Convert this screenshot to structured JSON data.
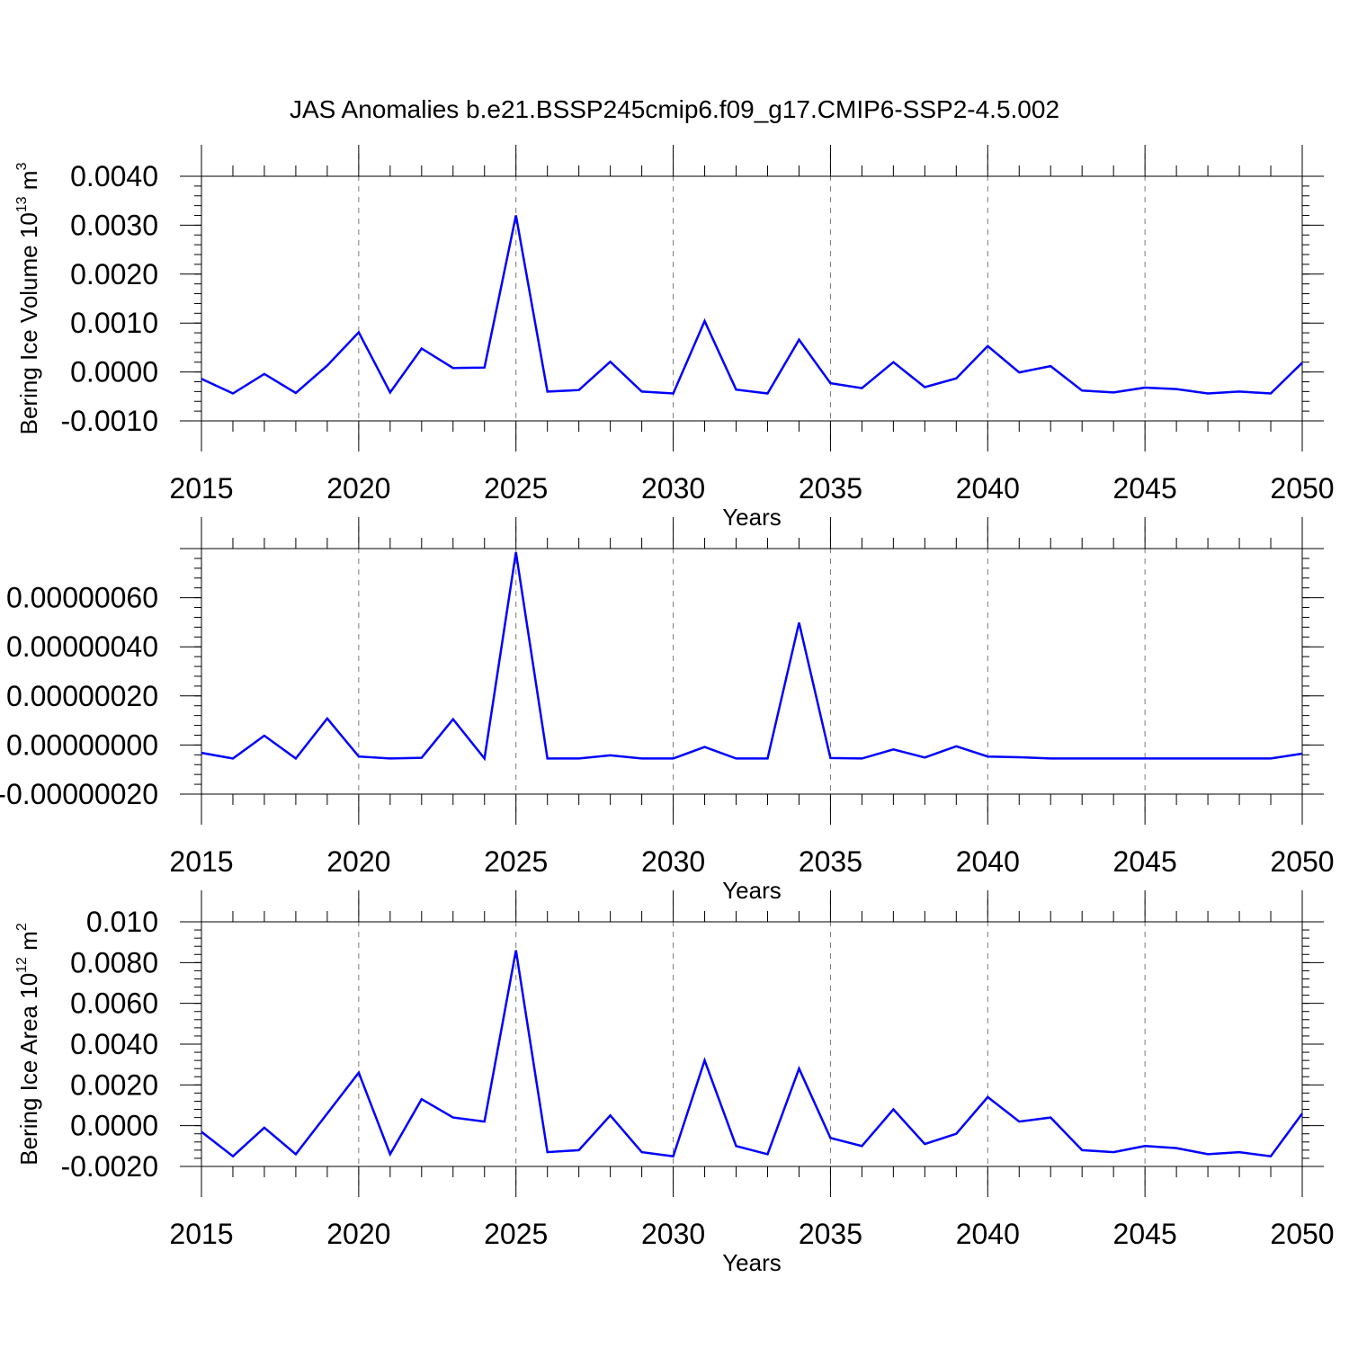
{
  "title": "JAS Anomalies b.e21.BSSP245cmip6.f09_g17.CMIP6-SSP2-4.5.002",
  "line_color": "#0000ff",
  "chart_data": [
    {
      "type": "line",
      "ylabel": "Bering Ice Volume 10",
      "ylabel_exp": "13",
      "ylabel_unit": " m",
      "ylabel_unit_exp": "3",
      "xlabel": "Years",
      "xlim": [
        2015,
        2050
      ],
      "ylim": [
        -0.001,
        0.004
      ],
      "yticks": [
        -0.001,
        0.0,
        0.001,
        0.002,
        0.003,
        0.004
      ],
      "ytick_labels": [
        "-0.0010",
        "0.0000",
        "0.0010",
        "0.0020",
        "0.0030",
        "0.0040"
      ],
      "xticks": [
        2015,
        2020,
        2025,
        2030,
        2035,
        2040,
        2045,
        2050
      ],
      "xtick_labels": [
        "2015",
        "2020",
        "2025",
        "2030",
        "2035",
        "2040",
        "2045",
        "2050"
      ],
      "grid_x": true,
      "x": [
        2015,
        2016,
        2017,
        2018,
        2019,
        2020,
        2021,
        2022,
        2023,
        2024,
        2025,
        2026,
        2027,
        2028,
        2029,
        2030,
        2031,
        2032,
        2033,
        2034,
        2035,
        2036,
        2037,
        2038,
        2039,
        2040,
        2041,
        2042,
        2043,
        2044,
        2045,
        2046,
        2047,
        2048,
        2049,
        2050
      ],
      "values": [
        -0.00014,
        -0.00044,
        -4e-05,
        -0.00043,
        0.00013,
        0.00081,
        -0.00042,
        0.00048,
        8e-05,
        9e-05,
        0.0032,
        -0.0004,
        -0.00037,
        0.00021,
        -0.0004,
        -0.00044,
        0.00104,
        -0.00036,
        -0.00044,
        0.00066,
        -0.00023,
        -0.00033,
        0.0002,
        -0.00031,
        -0.00013,
        0.00053,
        -1e-05,
        0.00012,
        -0.00038,
        -0.00042,
        -0.00032,
        -0.00035,
        -0.00044,
        -0.0004,
        -0.00044,
        0.00019
      ]
    },
    {
      "type": "line",
      "ylabel": "",
      "xlabel": "Years",
      "xlim": [
        2015,
        2050
      ],
      "ylim": [
        -2e-07,
        8e-07
      ],
      "yticks": [
        -2e-07,
        0.0,
        2e-07,
        4e-07,
        6e-07
      ],
      "ytick_labels": [
        "-0.00000020",
        "0.00000000",
        "0.00000020",
        "0.00000040",
        "0.00000060"
      ],
      "xticks": [
        2015,
        2020,
        2025,
        2030,
        2035,
        2040,
        2045,
        2050
      ],
      "xtick_labels": [
        "2015",
        "2020",
        "2025",
        "2030",
        "2035",
        "2040",
        "2045",
        "2050"
      ],
      "grid_x": true,
      "x": [
        2015,
        2016,
        2017,
        2018,
        2019,
        2020,
        2021,
        2022,
        2023,
        2024,
        2025,
        2026,
        2027,
        2028,
        2029,
        2030,
        2031,
        2032,
        2033,
        2034,
        2035,
        2036,
        2037,
        2038,
        2039,
        2040,
        2041,
        2042,
        2043,
        2044,
        2045,
        2046,
        2047,
        2048,
        2049,
        2050
      ],
      "values": [
        -3.2e-08,
        -5.5e-08,
        3.8e-08,
        -5.5e-08,
        1.08e-07,
        -4.7e-08,
        -5.5e-08,
        -5.2e-08,
        1.05e-07,
        -5.5e-08,
        7.85e-07,
        -5.5e-08,
        -5.5e-08,
        -4.2e-08,
        -5.5e-08,
        -5.5e-08,
        -8e-09,
        -5.5e-08,
        -5.5e-08,
        4.98e-07,
        -5.3e-08,
        -5.5e-08,
        -1.8e-08,
        -5.1e-08,
        -5e-09,
        -4.7e-08,
        -5e-08,
        -5.5e-08,
        -5.5e-08,
        -5.5e-08,
        -5.5e-08,
        -5.5e-08,
        -5.5e-08,
        -5.5e-08,
        -5.5e-08,
        -3.5e-08
      ]
    },
    {
      "type": "line",
      "ylabel": "Bering Ice Area 10",
      "ylabel_exp": "12",
      "ylabel_unit": " m",
      "ylabel_unit_exp": "2",
      "xlabel": "Years",
      "xlim": [
        2015,
        2050
      ],
      "ylim": [
        -0.002,
        0.01
      ],
      "yticks": [
        -0.002,
        0.0,
        0.002,
        0.004,
        0.006,
        0.008,
        0.01
      ],
      "ytick_labels": [
        "-0.0020",
        "0.0000",
        "0.0020",
        "0.0040",
        "0.0060",
        "0.0080",
        "0.010"
      ],
      "xticks": [
        2015,
        2020,
        2025,
        2030,
        2035,
        2040,
        2045,
        2050
      ],
      "xtick_labels": [
        "2015",
        "2020",
        "2025",
        "2030",
        "2035",
        "2040",
        "2045",
        "2050"
      ],
      "grid_x": true,
      "x": [
        2015,
        2016,
        2017,
        2018,
        2019,
        2020,
        2021,
        2022,
        2023,
        2024,
        2025,
        2026,
        2027,
        2028,
        2029,
        2030,
        2031,
        2032,
        2033,
        2034,
        2035,
        2036,
        2037,
        2038,
        2039,
        2040,
        2041,
        2042,
        2043,
        2044,
        2045,
        2046,
        2047,
        2048,
        2049,
        2050
      ],
      "values": [
        -0.0003,
        -0.0015,
        -0.0001,
        -0.0014,
        0.0006,
        0.0026,
        -0.0014,
        0.0013,
        0.0004,
        0.0002,
        0.0086,
        -0.0013,
        -0.0012,
        0.0005,
        -0.0013,
        -0.0015,
        0.0032,
        -0.001,
        -0.0014,
        0.0028,
        -0.0006,
        -0.001,
        0.0008,
        -0.0009,
        -0.0004,
        0.0014,
        0.0002,
        0.0004,
        -0.0012,
        -0.0013,
        -0.001,
        -0.0011,
        -0.0014,
        -0.0013,
        -0.0015,
        0.0006
      ]
    }
  ]
}
